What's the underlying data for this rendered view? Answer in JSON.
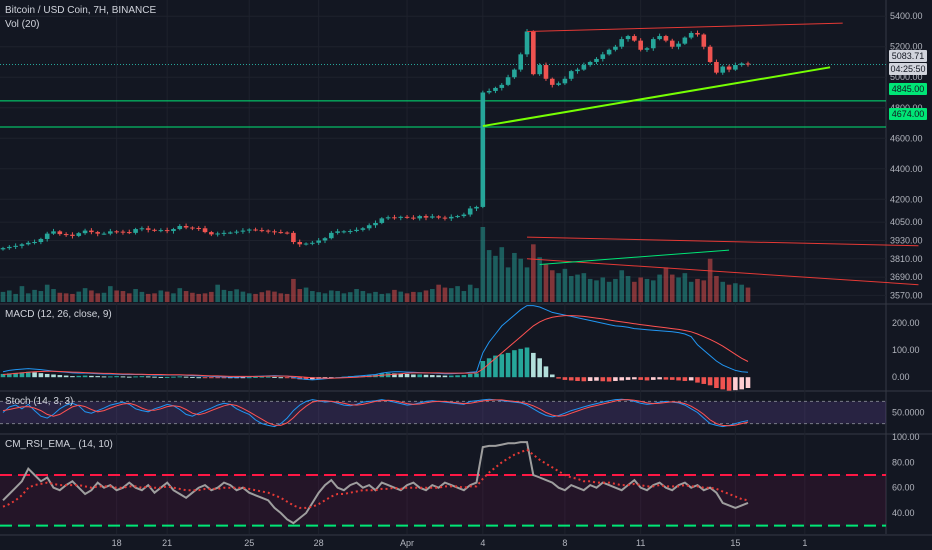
{
  "chart_data": {
    "type": "candlestick",
    "title": "Bitcoin / USD Coin, 7H, BINANCE",
    "x_ticks": [
      "18",
      "21",
      "25",
      "28",
      "Apr",
      "4",
      "8",
      "11",
      "15",
      "1"
    ],
    "price_axis_ticks": [
      5400,
      5200,
      5000,
      4800,
      4600,
      4400,
      4200,
      4050,
      3930,
      3810,
      3690,
      3570
    ],
    "price_axis_labels": [
      "5400.00",
      "5200.00",
      "5000.00",
      "4800.00",
      "4600.00",
      "4400.00",
      "4200.00",
      "4050.00",
      "3930.00",
      "3810.00",
      "3690.00",
      "3570.00"
    ],
    "ylim_price": [
      3540,
      5480
    ],
    "price_close_series": [
      3880,
      3888,
      3895,
      3905,
      3915,
      3920,
      3940,
      3975,
      3990,
      3972,
      3968,
      3960,
      3978,
      3995,
      3985,
      3975,
      3975,
      3990,
      3988,
      3985,
      3980,
      4005,
      4010,
      4000,
      3995,
      3998,
      3992,
      4005,
      4025,
      4015,
      4012,
      4010,
      3985,
      3970,
      3976,
      3980,
      3982,
      3988,
      3995,
      4002,
      3998,
      3995,
      3990,
      3985,
      3982,
      3980,
      3920,
      3905,
      3910,
      3915,
      3930,
      3945,
      3980,
      3990,
      3990,
      3992,
      4000,
      4010,
      4030,
      4045,
      4075,
      4082,
      4080,
      4085,
      4080,
      4075,
      4090,
      4080,
      4088,
      4080,
      4075,
      4085,
      4090,
      4100,
      4140,
      4150,
      4900,
      4910,
      4930,
      4950,
      5000,
      5050,
      5150,
      5300,
      5020,
      5080,
      4990,
      4950,
      4960,
      4990,
      5040,
      5050,
      5080,
      5100,
      5120,
      5150,
      5180,
      5200,
      5250,
      5270,
      5240,
      5180,
      5190,
      5250,
      5270,
      5240,
      5200,
      5220,
      5260,
      5290,
      5280,
      5200,
      5100,
      5030,
      5070,
      5050,
      5080,
      5090,
      5083.71
    ],
    "current_price_label": "5083.71",
    "countdown_label": "04:25:50",
    "horizontal_levels": [
      {
        "value": 4845.0,
        "label": "4845.00",
        "color": "#00e676"
      },
      {
        "value": 4674.0,
        "label": "4674.00",
        "color": "#00e676"
      }
    ],
    "trendlines": [
      {
        "name": "upper-resistance",
        "color": "#e53935",
        "from": [
          83,
          5300
        ],
        "to": [
          133,
          5355
        ]
      },
      {
        "name": "lower-support",
        "color": "#76ff03",
        "from": [
          76,
          4680
        ],
        "to": [
          131,
          5065
        ]
      }
    ],
    "volume": {
      "label": "Vol (20)",
      "values": [
        35,
        40,
        28,
        55,
        30,
        42,
        38,
        60,
        45,
        32,
        30,
        28,
        36,
        48,
        40,
        30,
        32,
        55,
        40,
        38,
        30,
        45,
        35,
        28,
        30,
        40,
        36,
        30,
        48,
        38,
        32,
        28,
        30,
        35,
        60,
        42,
        38,
        44,
        36,
        30,
        28,
        34,
        40,
        36,
        30,
        28,
        80,
        45,
        50,
        38,
        34,
        30,
        40,
        38,
        30,
        34,
        45,
        38,
        30,
        35,
        28,
        30,
        42,
        36,
        30,
        35,
        34,
        40,
        45,
        60,
        50,
        48,
        55,
        38,
        60,
        48,
        260,
        180,
        160,
        190,
        120,
        170,
        150,
        120,
        200,
        155,
        130,
        110,
        100,
        115,
        90,
        95,
        100,
        80,
        75,
        85,
        70,
        80,
        110,
        90,
        70,
        85,
        80,
        75,
        95,
        120,
        95,
        85,
        100,
        70,
        80,
        75,
        150,
        90,
        70,
        60,
        65,
        60,
        50
      ],
      "ma_upper": {
        "from": [
          83,
          225
        ],
        "to": [
          145,
          195
        ]
      },
      "ma_green": {
        "from": [
          85,
          130
        ],
        "to": [
          115,
          180
        ]
      },
      "ma_red_lower": {
        "from": [
          83,
          150
        ],
        "to": [
          145,
          60
        ]
      }
    },
    "macd": {
      "label": "MACD (12, 26, close, 9)",
      "ylim": [
        -40,
        260
      ],
      "ticks": [
        200,
        100,
        0
      ],
      "tick_labels": [
        "200.00",
        "100.00",
        "0.00"
      ],
      "hist": [
        12,
        14,
        16,
        18,
        20,
        18,
        15,
        12,
        10,
        8,
        6,
        4,
        5,
        6,
        5,
        4,
        3,
        3,
        4,
        3,
        2,
        3,
        4,
        3,
        2,
        1,
        1,
        2,
        3,
        2,
        1,
        0,
        -1,
        -2,
        -3,
        -4,
        -3,
        -2,
        -1,
        0,
        1,
        2,
        2,
        1,
        0,
        -1,
        -5,
        -8,
        -9,
        -8,
        -6,
        -4,
        -2,
        0,
        2,
        4,
        5,
        6,
        8,
        10,
        14,
        15,
        14,
        13,
        12,
        10,
        10,
        9,
        8,
        7,
        6,
        6,
        7,
        8,
        12,
        14,
        60,
        70,
        80,
        85,
        90,
        100,
        105,
        110,
        90,
        70,
        40,
        10,
        -5,
        -10,
        -12,
        -14,
        -15,
        -14,
        -13,
        -15,
        -16,
        -14,
        -12,
        -10,
        -8,
        -10,
        -12,
        -10,
        -8,
        -9,
        -10,
        -12,
        -14,
        -12,
        -20,
        -25,
        -30,
        -40,
        -45,
        -50,
        -48,
        -45,
        -40
      ],
      "macd_line": [
        20,
        25,
        28,
        30,
        32,
        30,
        28,
        25,
        22,
        20,
        18,
        16,
        15,
        15,
        14,
        13,
        12,
        12,
        11,
        10,
        10,
        10,
        10,
        9,
        8,
        8,
        8,
        8,
        8,
        7,
        6,
        5,
        4,
        3,
        2,
        1,
        0,
        0,
        1,
        2,
        3,
        4,
        5,
        6,
        5,
        4,
        0,
        -5,
        -8,
        -10,
        -8,
        -6,
        -4,
        -2,
        0,
        2,
        4,
        6,
        8,
        10,
        15,
        18,
        20,
        20,
        19,
        18,
        17,
        16,
        15,
        14,
        13,
        13,
        14,
        15,
        18,
        20,
        90,
        130,
        160,
        190,
        210,
        230,
        250,
        265,
        265,
        260,
        250,
        240,
        235,
        230,
        225,
        220,
        215,
        210,
        205,
        200,
        195,
        190,
        188,
        185,
        180,
        178,
        176,
        174,
        172,
        170,
        168,
        165,
        160,
        150,
        120,
        100,
        80,
        60,
        45,
        35,
        25,
        20,
        18
      ],
      "signal_line": [
        10,
        12,
        14,
        16,
        18,
        20,
        21,
        22,
        22,
        21,
        20,
        19,
        18,
        17,
        16,
        15,
        14,
        14,
        13,
        12,
        12,
        11,
        11,
        10,
        10,
        10,
        9,
        9,
        9,
        8,
        8,
        7,
        6,
        5,
        5,
        4,
        3,
        3,
        3,
        3,
        3,
        3,
        4,
        4,
        4,
        4,
        3,
        2,
        0,
        -2,
        -3,
        -4,
        -4,
        -3,
        -2,
        -1,
        0,
        2,
        3,
        5,
        7,
        9,
        11,
        13,
        15,
        16,
        16,
        16,
        16,
        16,
        15,
        15,
        15,
        15,
        15,
        16,
        30,
        50,
        70,
        90,
        110,
        130,
        150,
        170,
        190,
        205,
        215,
        222,
        226,
        228,
        228,
        227,
        225,
        222,
        219,
        216,
        212,
        208,
        205,
        202,
        198,
        195,
        192,
        189,
        186,
        183,
        180,
        177,
        173,
        168,
        160,
        150,
        140,
        128,
        115,
        100,
        85,
        70,
        58
      ]
    },
    "stoch": {
      "label": "Stoch (14, 3, 3)",
      "ylim": [
        0,
        100
      ],
      "ticks": [
        50
      ],
      "tick_labels": [
        "50.0000"
      ],
      "upper_band": 80,
      "lower_band": 20,
      "k": [
        50,
        65,
        70,
        60,
        72,
        55,
        40,
        35,
        45,
        60,
        70,
        75,
        68,
        52,
        48,
        55,
        62,
        70,
        74,
        78,
        72,
        60,
        55,
        52,
        60,
        65,
        72,
        68,
        58,
        45,
        40,
        48,
        55,
        62,
        70,
        75,
        72,
        60,
        52,
        45,
        30,
        20,
        15,
        12,
        20,
        35,
        55,
        70,
        80,
        85,
        82,
        78,
        80,
        75,
        70,
        68,
        72,
        78,
        80,
        82,
        85,
        82,
        78,
        74,
        70,
        72,
        76,
        80,
        82,
        80,
        78,
        76,
        74,
        72,
        80,
        82,
        84,
        86,
        84,
        82,
        80,
        78,
        76,
        70,
        60,
        50,
        42,
        38,
        42,
        48,
        55,
        60,
        65,
        70,
        74,
        78,
        82,
        85,
        86,
        84,
        80,
        75,
        72,
        74,
        78,
        80,
        78,
        76,
        70,
        60,
        50,
        35,
        20,
        15,
        12,
        15,
        20,
        25,
        28
      ],
      "d": [
        55,
        58,
        62,
        65,
        66,
        62,
        55,
        45,
        40,
        45,
        55,
        65,
        70,
        66,
        58,
        52,
        55,
        62,
        68,
        73,
        75,
        70,
        62,
        56,
        56,
        60,
        66,
        68,
        66,
        58,
        48,
        44,
        48,
        55,
        62,
        68,
        72,
        69,
        61,
        52,
        42,
        32,
        22,
        16,
        15,
        22,
        36,
        53,
        67,
        78,
        82,
        82,
        80,
        78,
        75,
        71,
        70,
        72,
        76,
        80,
        82,
        83,
        82,
        78,
        74,
        72,
        73,
        76,
        79,
        80,
        80,
        78,
        76,
        74,
        75,
        78,
        81,
        83,
        84,
        84,
        82,
        80,
        78,
        74,
        68,
        60,
        50,
        43,
        40,
        42,
        48,
        54,
        60,
        65,
        69,
        73,
        77,
        81,
        84,
        85,
        83,
        80,
        76,
        74,
        75,
        77,
        79,
        78,
        74,
        67,
        57,
        45,
        30,
        20,
        15,
        14,
        16,
        20,
        24
      ]
    },
    "rsi": {
      "label": "CM_RSI_EMA_ (14, 10)",
      "ylim": [
        25,
        100
      ],
      "ticks": [
        100,
        80,
        60,
        40
      ],
      "tick_labels": [
        "100.00",
        "80.00",
        "60.00",
        "40.00"
      ],
      "overbought": 70,
      "oversold": 30,
      "rsi": [
        50,
        55,
        60,
        65,
        75,
        70,
        65,
        68,
        60,
        58,
        62,
        65,
        60,
        55,
        58,
        64,
        60,
        62,
        58,
        60,
        64,
        60,
        58,
        62,
        56,
        60,
        64,
        58,
        55,
        52,
        56,
        60,
        62,
        58,
        60,
        64,
        62,
        58,
        60,
        56,
        54,
        52,
        50,
        44,
        40,
        35,
        32,
        36,
        40,
        48,
        56,
        62,
        66,
        60,
        58,
        62,
        64,
        60,
        62,
        58,
        64,
        62,
        60,
        58,
        62,
        64,
        60,
        58,
        62,
        60,
        64,
        62,
        60,
        58,
        62,
        64,
        92,
        93,
        93,
        94,
        95,
        95,
        96,
        96,
        70,
        68,
        66,
        64,
        60,
        58,
        62,
        60,
        58,
        62,
        60,
        64,
        62,
        60,
        58,
        62,
        66,
        60,
        58,
        62,
        64,
        60,
        58,
        62,
        64,
        60,
        62,
        58,
        60,
        56,
        48,
        46,
        44,
        46,
        48
      ],
      "ema": [
        45,
        47,
        50,
        54,
        60,
        62,
        63,
        64,
        63,
        62,
        62,
        62,
        62,
        61,
        60,
        61,
        61,
        61,
        60,
        60,
        61,
        61,
        60,
        61,
        60,
        60,
        61,
        60,
        59,
        58,
        58,
        58,
        59,
        59,
        59,
        60,
        60,
        60,
        60,
        59,
        58,
        57,
        56,
        54,
        52,
        49,
        46,
        44,
        44,
        45,
        47,
        50,
        53,
        55,
        55,
        56,
        57,
        58,
        58,
        58,
        59,
        59,
        60,
        59,
        60,
        60,
        60,
        60,
        60,
        60,
        61,
        61,
        61,
        60,
        61,
        61,
        67,
        72,
        76,
        80,
        83,
        86,
        88,
        90,
        86,
        82,
        79,
        76,
        73,
        70,
        68,
        67,
        65,
        65,
        64,
        64,
        64,
        63,
        62,
        62,
        63,
        62,
        61,
        61,
        62,
        61,
        61,
        61,
        62,
        61,
        61,
        60,
        60,
        59,
        57,
        55,
        53,
        51,
        50
      ]
    },
    "date_positions": {
      "18": 18,
      "21": 26,
      "25": 39,
      "28": 50,
      "Apr": 64,
      "4": 76,
      "8": 89,
      "11": 101,
      "15": 116,
      "1": 127
    }
  }
}
